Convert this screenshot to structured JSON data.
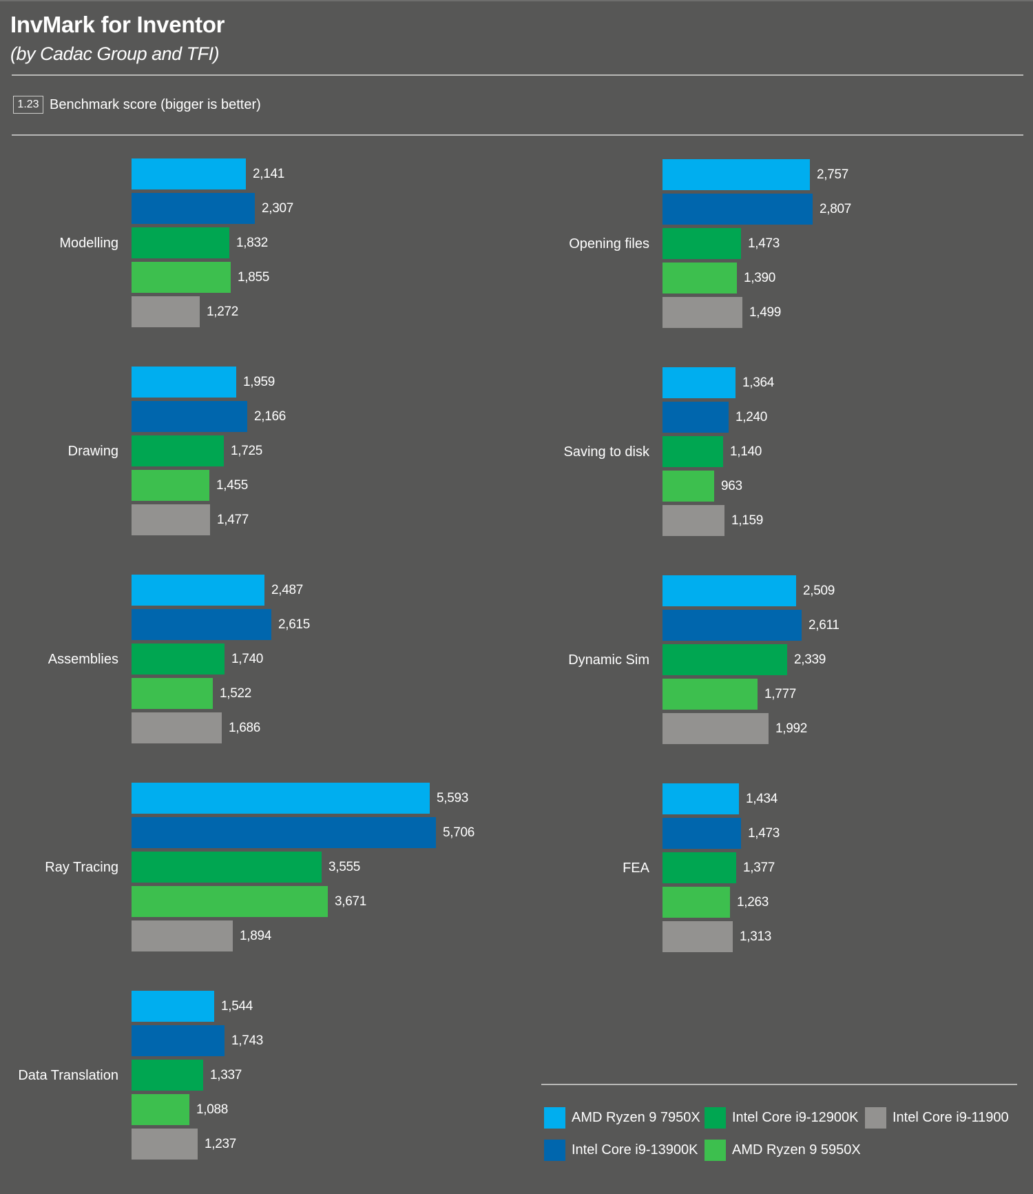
{
  "header": {
    "title": "InvMark for Inventor",
    "subtitle": "(by Cadac Group and TFI)",
    "unit_box": "1.23",
    "unit_text": "Benchmark score (bigger is better)"
  },
  "chart_data": {
    "type": "bar",
    "orientation": "horizontal",
    "title": "InvMark for Inventor",
    "subtitle": "(by Cadac Group and TFI)",
    "xlabel": "Benchmark score (bigger is better)",
    "ylabel": "",
    "grid": false,
    "legend_position": "bottom-right",
    "series": [
      {
        "name": "AMD Ryzen 9 7950X",
        "color": "#00aeef"
      },
      {
        "name": "Intel Core i9-13900K",
        "color": "#0066ad"
      },
      {
        "name": "Intel Core i9-12900K",
        "color": "#00a651"
      },
      {
        "name": "AMD Ryzen 9 5950X",
        "color": "#3dbf4e"
      },
      {
        "name": "Intel Core i9-11900",
        "color": "#939290"
      }
    ],
    "groups": [
      {
        "category": "Modelling",
        "column": "left",
        "values": [
          2141,
          2307,
          1832,
          1855,
          1272
        ],
        "labels": [
          "2,141",
          "2,307",
          "1,832",
          "1,855",
          "1,272"
        ]
      },
      {
        "category": "Drawing",
        "column": "left",
        "values": [
          1959,
          2166,
          1725,
          1455,
          1477
        ],
        "labels": [
          "1,959",
          "2,166",
          "1,725",
          "1,455",
          "1,477"
        ]
      },
      {
        "category": "Assemblies",
        "column": "left",
        "values": [
          2487,
          2615,
          1740,
          1522,
          1686
        ],
        "labels": [
          "2,487",
          "2,615",
          "1,740",
          "1,522",
          "1,686"
        ]
      },
      {
        "category": "Ray Tracing",
        "column": "left",
        "values": [
          5593,
          5706,
          3555,
          3671,
          1894
        ],
        "labels": [
          "5,593",
          "5,706",
          "3,555",
          "3,671",
          "1,894"
        ]
      },
      {
        "category": "Data Translation",
        "column": "left",
        "values": [
          1544,
          1743,
          1337,
          1088,
          1237
        ],
        "labels": [
          "1,544",
          "1,743",
          "1,337",
          "1,088",
          "1,237"
        ]
      },
      {
        "category": "Opening files",
        "column": "right",
        "values": [
          2757,
          2807,
          1473,
          1390,
          1499
        ],
        "labels": [
          "2,757",
          "2,807",
          "1,473",
          "1,390",
          "1,499"
        ]
      },
      {
        "category": "Saving to disk",
        "column": "right",
        "values": [
          1364,
          1240,
          1140,
          963,
          1159
        ],
        "labels": [
          "1,364",
          "1,240",
          "1,140",
          "963",
          "1,159"
        ]
      },
      {
        "category": "Dynamic Sim",
        "column": "right",
        "values": [
          2509,
          2611,
          2339,
          1777,
          1992
        ],
        "labels": [
          "2,509",
          "2,611",
          "2,339",
          "1,777",
          "1,992"
        ]
      },
      {
        "category": "FEA",
        "column": "right",
        "values": [
          1434,
          1473,
          1377,
          1263,
          1313
        ],
        "labels": [
          "1,434",
          "1,473",
          "1,377",
          "1,263",
          "1,313"
        ]
      }
    ]
  },
  "legend": {
    "items": [
      {
        "label": "AMD Ryzen 9 7950X",
        "color": "#00aeef"
      },
      {
        "label": "Intel Core i9-13900K",
        "color": "#0066ad"
      },
      {
        "label": "Intel Core i9-12900K",
        "color": "#00a651"
      },
      {
        "label": "AMD Ryzen 9 5950X",
        "color": "#3dbf4e"
      },
      {
        "label": "Intel Core i9-11900",
        "color": "#939290"
      }
    ]
  }
}
